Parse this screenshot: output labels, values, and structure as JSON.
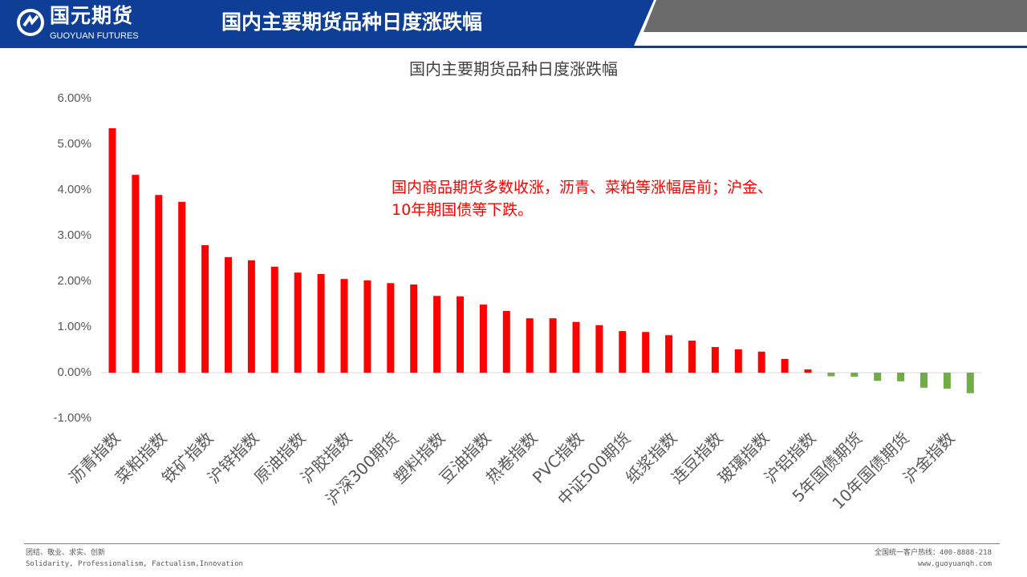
{
  "header": {
    "logo_cn": "国元期货",
    "logo_en": "GUOYUAN FUTURES",
    "title": "国内主要期货品种日度涨跌幅"
  },
  "annotation": {
    "line1": "国内商品期货多数收涨，沥青、菜粕等涨幅居前；沪金、",
    "line2": "10年期国债等下跌。"
  },
  "footer": {
    "motto_cn": "团结、敬业、求实、创新",
    "motto_en": "Solidarity, Professionalism, Factualism,Innovation",
    "hotline": "全国统一客户热线：400-8888-218",
    "website": "www.guoyuanqh.com"
  },
  "colors": {
    "positive": "#ff0000",
    "negative": "#70ad47",
    "header": "#0f3e96"
  },
  "chart_data": {
    "type": "bar",
    "title": "国内主要期货品种日度涨跌幅",
    "xlabel": "",
    "ylabel": "",
    "ylim": [
      -1,
      6
    ],
    "yticks": [
      "6.00%",
      "5.00%",
      "4.00%",
      "3.00%",
      "2.00%",
      "1.00%",
      "0.00%",
      "-1.00%"
    ],
    "ytick_values": [
      6,
      5,
      4,
      3,
      2,
      1,
      0,
      -1
    ],
    "categories": [
      "沥青指数",
      "",
      "菜粕指数",
      "",
      "铁矿指数",
      "",
      "沪锌指数",
      "",
      "原油指数",
      "",
      "沪胶指数",
      "",
      "沪深300期货",
      "",
      "塑料指数",
      "",
      "豆油指数",
      "",
      "热卷指数",
      "",
      "PVC指数",
      "",
      "中证500期货",
      "",
      "纸浆指数",
      "",
      "连豆指数",
      "",
      "玻璃指数",
      "",
      "沪铝指数",
      "",
      "5年国债期货",
      "",
      "10年国债期货",
      "",
      "沪金指数",
      ""
    ],
    "values": [
      5.35,
      4.33,
      3.89,
      3.74,
      2.79,
      2.53,
      2.46,
      2.32,
      2.19,
      2.16,
      2.05,
      2.02,
      1.96,
      1.93,
      1.68,
      1.67,
      1.49,
      1.35,
      1.19,
      1.19,
      1.11,
      1.04,
      0.91,
      0.89,
      0.82,
      0.7,
      0.56,
      0.51,
      0.46,
      0.3,
      0.07,
      -0.08,
      -0.09,
      -0.18,
      -0.19,
      -0.33,
      -0.35,
      -0.45
    ],
    "grid": false,
    "legend": "none"
  }
}
